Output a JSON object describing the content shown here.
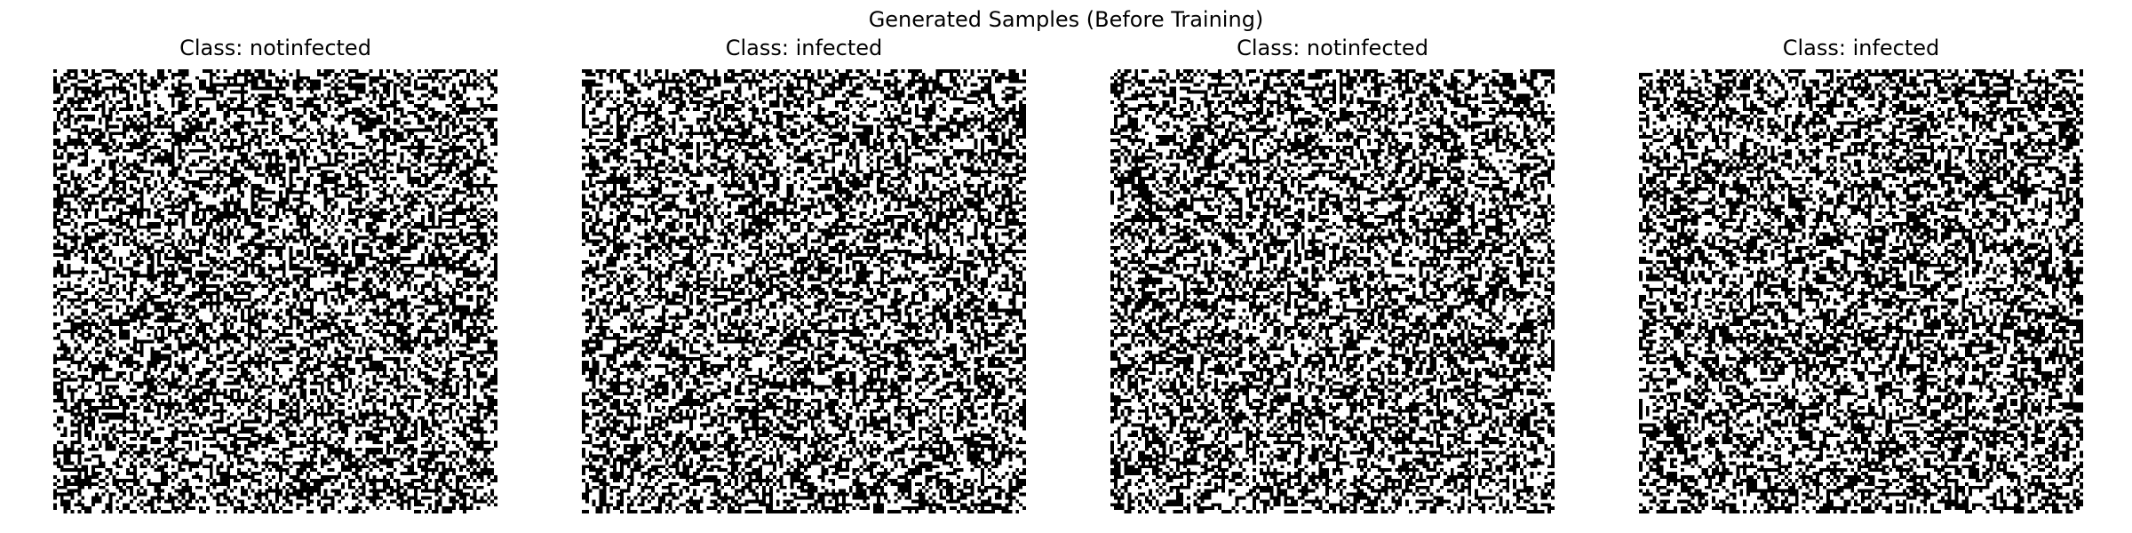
{
  "figure": {
    "title": "Generated Samples (Before Training)"
  },
  "samples": [
    {
      "title": "Class: notinfected",
      "class": "notinfected",
      "pattern": "binary-noise"
    },
    {
      "title": "Class: infected",
      "class": "infected",
      "pattern": "binary-noise"
    },
    {
      "title": "Class: notinfected",
      "class": "notinfected",
      "pattern": "binary-noise"
    },
    {
      "title": "Class: infected",
      "class": "infected",
      "pattern": "binary-noise"
    }
  ],
  "colors": {
    "background": "#ffffff",
    "pixel_on": "#000000",
    "pixel_off": "#ffffff"
  }
}
